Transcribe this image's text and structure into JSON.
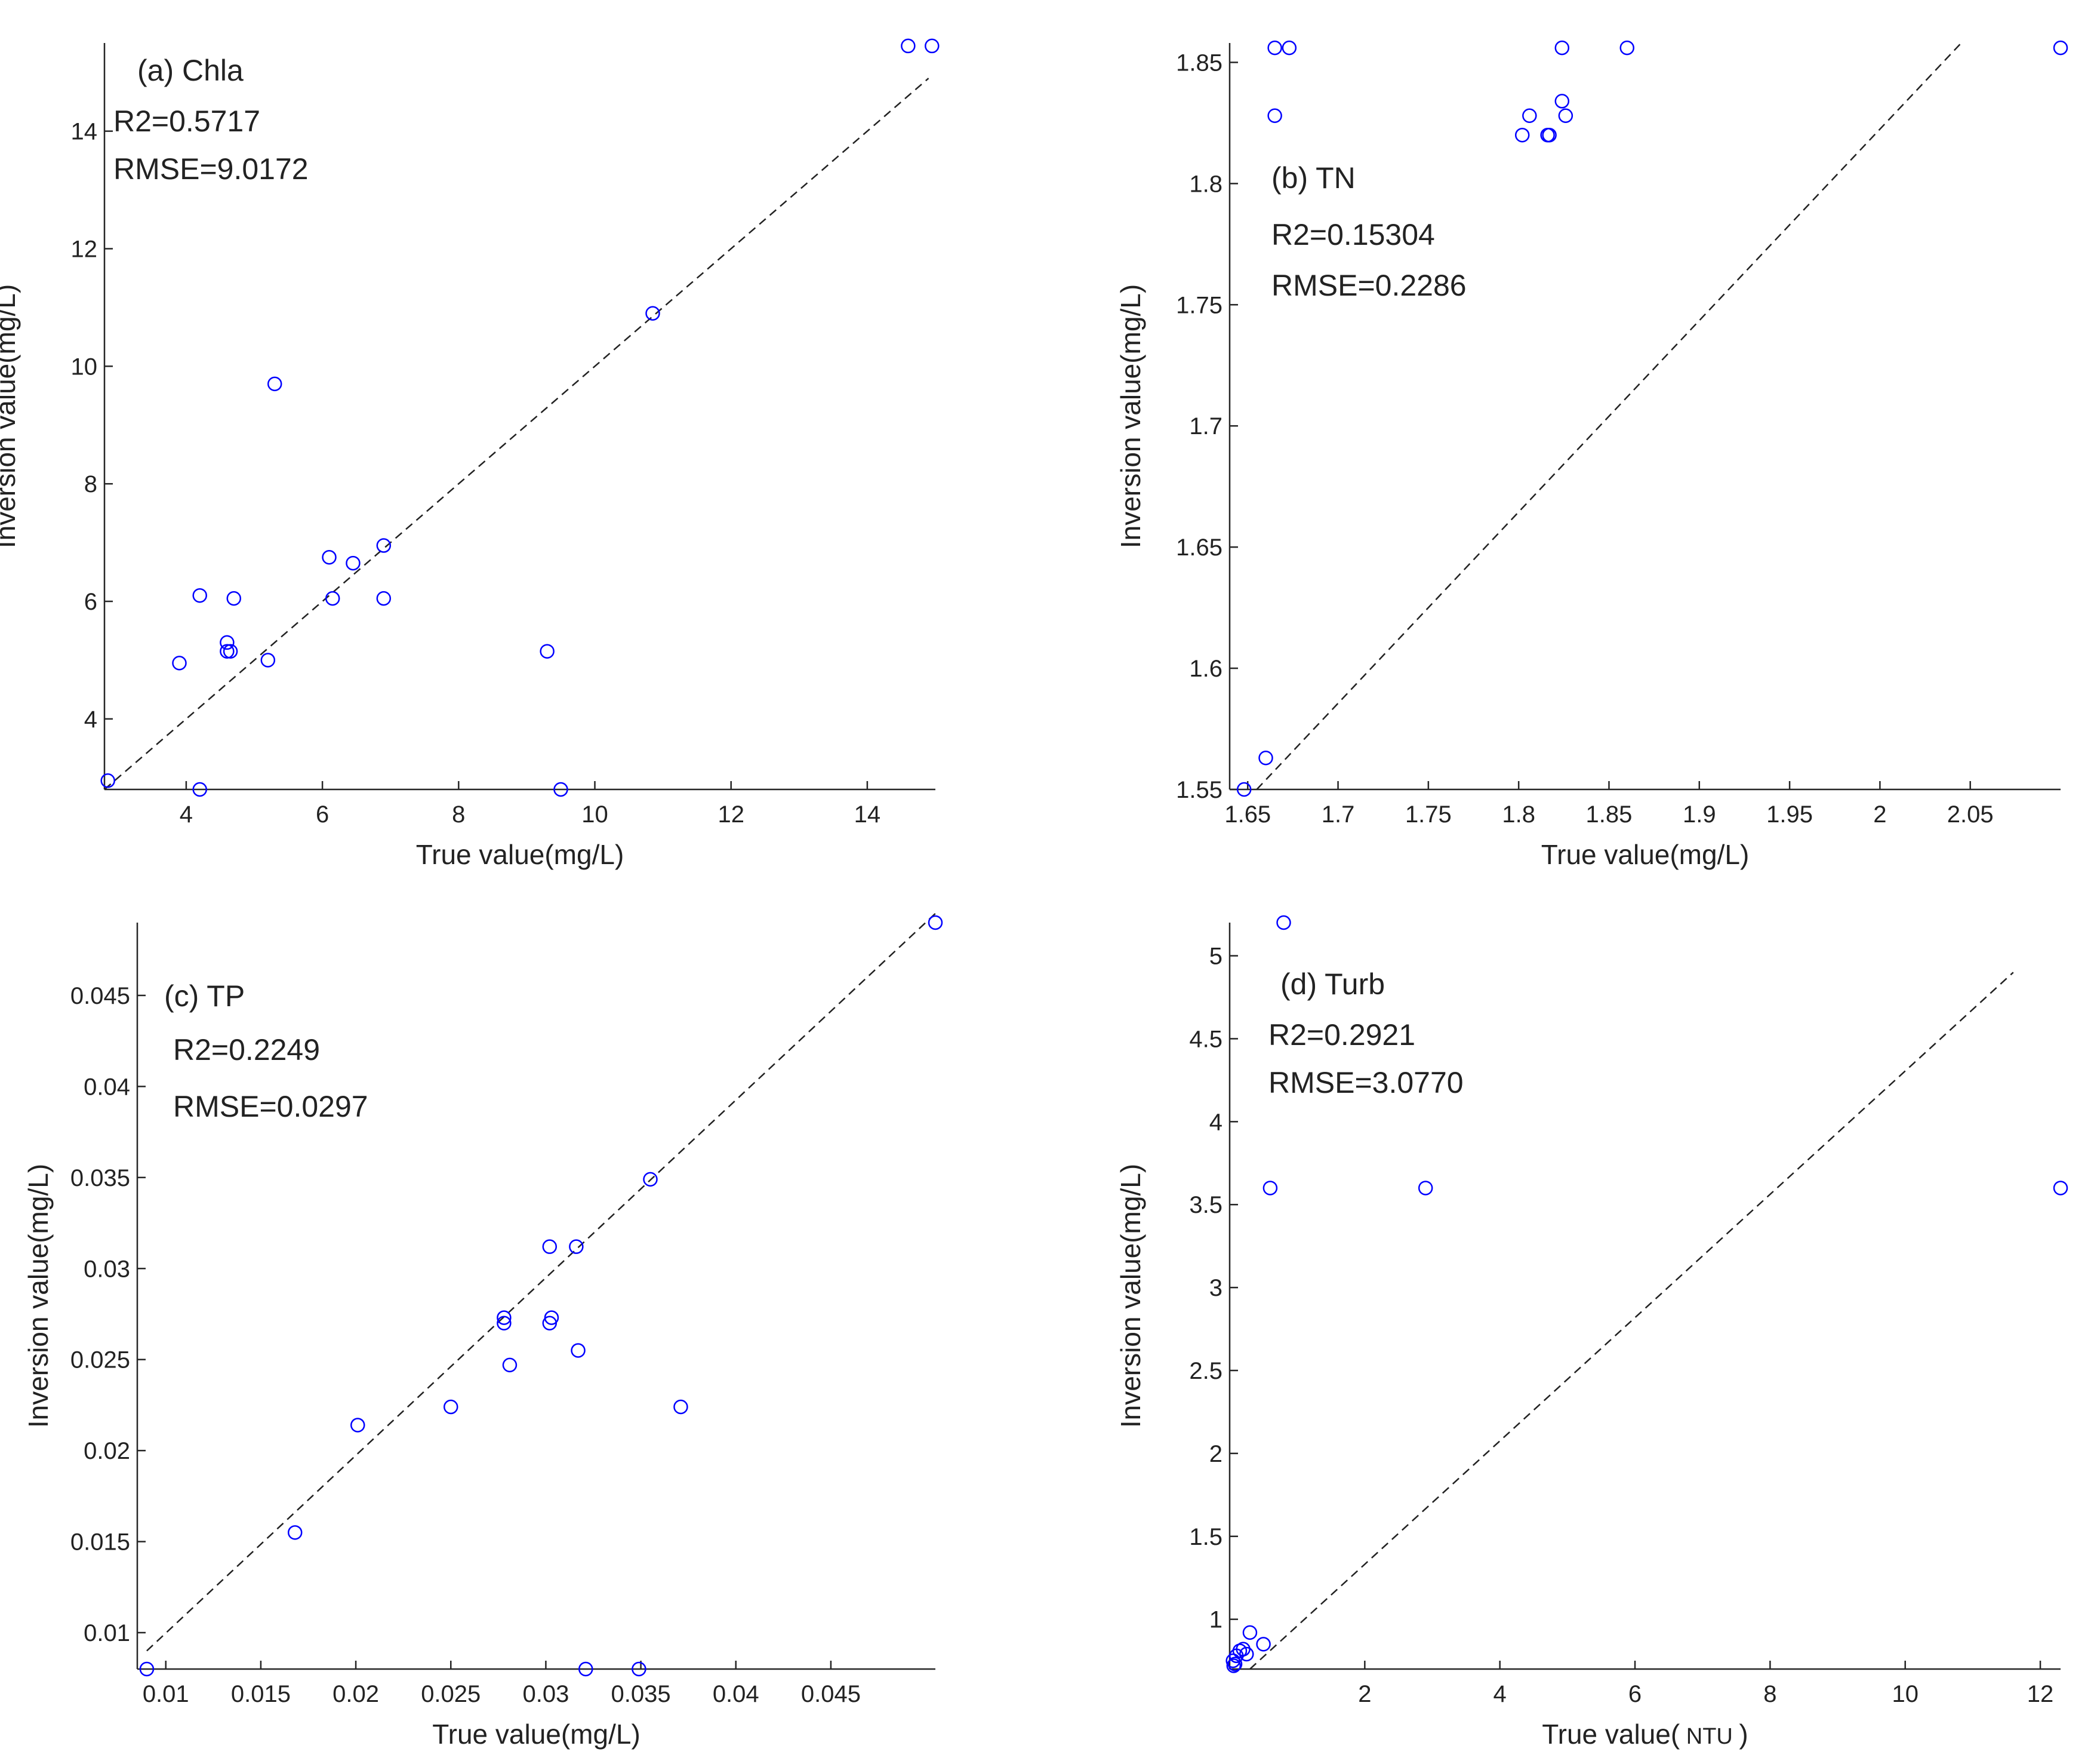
{
  "chart_data": [
    {
      "type": "scatter",
      "panel": "a",
      "title": "(a) Chla",
      "annotations": [
        "R2=0.5717",
        "RMSE=9.0172"
      ],
      "xlabel": "True value(mg/L)",
      "ylabel": "Inversion value(mg/L)",
      "xlim": [
        2.8,
        15.0
      ],
      "ylim": [
        2.8,
        15.5
      ],
      "xticks": [
        4,
        6,
        8,
        10,
        12,
        14
      ],
      "yticks": [
        4,
        6,
        8,
        10,
        12,
        14
      ],
      "xtick_labels": [
        "4",
        "6",
        "8",
        "10",
        "12",
        "14"
      ],
      "ytick_labels": [
        "4",
        "6",
        "8",
        "10",
        "12",
        "14"
      ],
      "reference_line": {
        "from": [
          2.8,
          2.8
        ],
        "to": [
          14.9,
          14.9
        ],
        "style": "dashed"
      },
      "points": [
        {
          "x": 14.6,
          "y": 15.45
        },
        {
          "x": 14.95,
          "y": 15.45
        },
        {
          "x": 10.85,
          "y": 10.9
        },
        {
          "x": 5.3,
          "y": 9.7
        },
        {
          "x": 6.9,
          "y": 6.95
        },
        {
          "x": 6.1,
          "y": 6.75
        },
        {
          "x": 6.45,
          "y": 6.65
        },
        {
          "x": 4.2,
          "y": 6.1
        },
        {
          "x": 4.7,
          "y": 6.05
        },
        {
          "x": 6.15,
          "y": 6.05
        },
        {
          "x": 6.9,
          "y": 6.05
        },
        {
          "x": 4.6,
          "y": 5.3
        },
        {
          "x": 4.6,
          "y": 5.15
        },
        {
          "x": 4.65,
          "y": 5.15
        },
        {
          "x": 9.3,
          "y": 5.15
        },
        {
          "x": 3.9,
          "y": 4.95
        },
        {
          "x": 5.2,
          "y": 5.0
        },
        {
          "x": 2.85,
          "y": 2.95
        },
        {
          "x": 4.2,
          "y": 2.75
        },
        {
          "x": 9.5,
          "y": 2.75
        }
      ],
      "marker_color": "#0000ff"
    },
    {
      "type": "scatter",
      "panel": "b",
      "title": "(b) TN",
      "annotations": [
        "R2=0.15304",
        "RMSE=0.2286"
      ],
      "xlabel": "True value(mg/L)",
      "ylabel": "Inversion value(mg/L)",
      "xlim": [
        1.64,
        2.1
      ],
      "ylim": [
        1.55,
        1.858
      ],
      "xticks": [
        1.65,
        1.7,
        1.75,
        1.8,
        1.85,
        1.9,
        1.95,
        2.0,
        2.05
      ],
      "yticks": [
        1.55,
        1.6,
        1.65,
        1.7,
        1.75,
        1.8,
        1.85
      ],
      "xtick_labels": [
        "1.65",
        "1.7",
        "1.75",
        "1.8",
        "1.85",
        "1.9",
        "1.95",
        "2",
        "2.05"
      ],
      "ytick_labels": [
        "1.55",
        "1.6",
        "1.65",
        "1.7",
        "1.75",
        "1.8",
        "1.85"
      ],
      "reference_line": {
        "from": [
          1.655,
          1.55
        ],
        "to": [
          2.045,
          1.858
        ],
        "style": "dashed"
      },
      "points": [
        {
          "x": 1.673,
          "y": 1.856
        },
        {
          "x": 1.665,
          "y": 1.856
        },
        {
          "x": 1.665,
          "y": 1.828
        },
        {
          "x": 1.824,
          "y": 1.856
        },
        {
          "x": 1.86,
          "y": 1.856
        },
        {
          "x": 2.1,
          "y": 1.856
        },
        {
          "x": 1.824,
          "y": 1.834
        },
        {
          "x": 1.806,
          "y": 1.828
        },
        {
          "x": 1.826,
          "y": 1.828
        },
        {
          "x": 1.802,
          "y": 1.82
        },
        {
          "x": 1.816,
          "y": 1.82
        },
        {
          "x": 1.817,
          "y": 1.82
        },
        {
          "x": 1.66,
          "y": 1.563
        },
        {
          "x": 1.648,
          "y": 1.549
        }
      ],
      "marker_color": "#0000ff"
    },
    {
      "type": "scatter",
      "panel": "c",
      "title": "(c) TP",
      "annotations": [
        "R2=0.2249",
        "RMSE=0.0297"
      ],
      "xlabel": "True value(mg/L)",
      "ylabel": "Inversion value(mg/L)",
      "xlim": [
        0.0085,
        0.0505
      ],
      "ylim": [
        0.008,
        0.049
      ],
      "xticks": [
        0.01,
        0.015,
        0.02,
        0.025,
        0.03,
        0.035,
        0.04,
        0.045
      ],
      "yticks": [
        0.01,
        0.015,
        0.02,
        0.025,
        0.03,
        0.035,
        0.04,
        0.045
      ],
      "xtick_labels": [
        "0.01",
        "0.015",
        "0.02",
        "0.025",
        "0.03",
        "0.035",
        "0.04",
        "0.045"
      ],
      "ytick_labels": [
        "0.01",
        "0.015",
        "0.02",
        "0.025",
        "0.03",
        "0.035",
        "0.04",
        "0.045"
      ],
      "reference_line": {
        "from": [
          0.009,
          0.009
        ],
        "to": [
          0.0505,
          0.0495
        ],
        "style": "dashed"
      },
      "points": [
        {
          "x": 0.0505,
          "y": 0.049
        },
        {
          "x": 0.0355,
          "y": 0.0349
        },
        {
          "x": 0.0302,
          "y": 0.0312
        },
        {
          "x": 0.0316,
          "y": 0.0312
        },
        {
          "x": 0.0278,
          "y": 0.0273
        },
        {
          "x": 0.0278,
          "y": 0.027
        },
        {
          "x": 0.0303,
          "y": 0.0273
        },
        {
          "x": 0.0302,
          "y": 0.027
        },
        {
          "x": 0.0281,
          "y": 0.0247
        },
        {
          "x": 0.0317,
          "y": 0.0255
        },
        {
          "x": 0.025,
          "y": 0.0224
        },
        {
          "x": 0.0371,
          "y": 0.0224
        },
        {
          "x": 0.0201,
          "y": 0.0214
        },
        {
          "x": 0.0168,
          "y": 0.0155
        },
        {
          "x": 0.009,
          "y": 0.008
        },
        {
          "x": 0.0321,
          "y": 0.008
        },
        {
          "x": 0.0349,
          "y": 0.008
        }
      ],
      "marker_color": "#0000ff"
    },
    {
      "type": "scatter",
      "panel": "d",
      "title": "(d) Turb",
      "annotations": [
        "R2=0.2921",
        "RMSE=3.0770"
      ],
      "xlabel": "True value(",
      "xlabel_unit": "NTU",
      "xlabel_close": ")",
      "ylabel": "Inversion value(mg/L)",
      "xlim": [
        0.0,
        12.3
      ],
      "ylim": [
        0.7,
        5.2
      ],
      "xticks": [
        2,
        4,
        6,
        8,
        10,
        12
      ],
      "yticks": [
        1,
        1.5,
        2,
        2.5,
        3,
        3.5,
        4,
        4.5,
        5
      ],
      "xtick_labels": [
        "2",
        "4",
        "6",
        "8",
        "10",
        "12"
      ],
      "ytick_labels": [
        "1",
        "1.5",
        "2",
        "2.5",
        "3",
        "3.5",
        "4",
        "4.5",
        "5"
      ],
      "reference_line": {
        "from": [
          0.3,
          0.7
        ],
        "to": [
          11.6,
          4.9
        ],
        "style": "dashed"
      },
      "points": [
        {
          "x": 0.8,
          "y": 5.25
        },
        {
          "x": 0.6,
          "y": 3.6
        },
        {
          "x": 2.9,
          "y": 3.6
        },
        {
          "x": 12.3,
          "y": 3.6
        },
        {
          "x": 0.3,
          "y": 0.92
        },
        {
          "x": 0.5,
          "y": 0.85
        },
        {
          "x": 0.2,
          "y": 0.82
        },
        {
          "x": 0.15,
          "y": 0.81
        },
        {
          "x": 0.25,
          "y": 0.79
        },
        {
          "x": 0.1,
          "y": 0.78
        },
        {
          "x": 0.05,
          "y": 0.75
        },
        {
          "x": 0.08,
          "y": 0.73
        },
        {
          "x": 0.06,
          "y": 0.72
        }
      ],
      "marker_color": "#0000ff"
    }
  ]
}
